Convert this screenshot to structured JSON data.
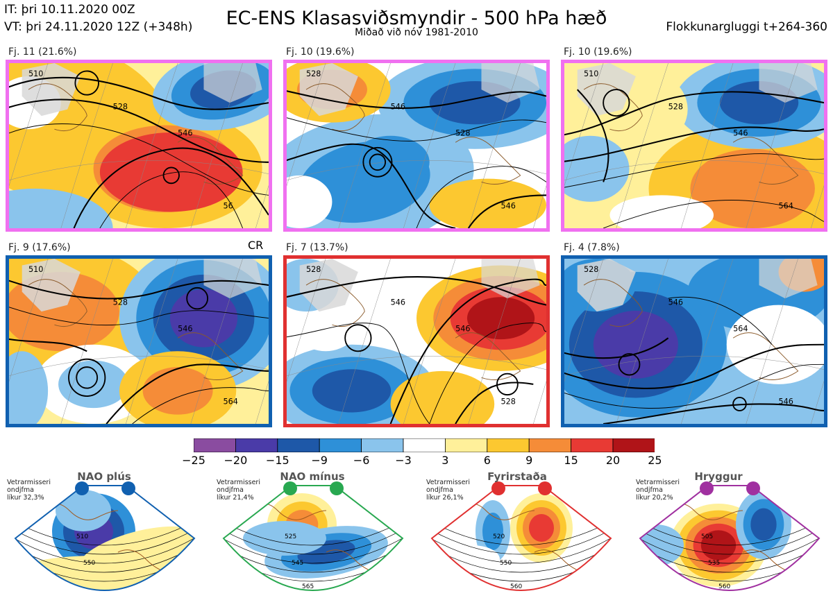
{
  "header": {
    "it": "IT: þri 10.11.2020 00Z",
    "vt": "VT: þri 24.11.2020 12Z  (+348h)",
    "title": "EC-ENS Klasasviðsmyndir - 500 hPa hæð",
    "subtitle": "Miðað við nóv 1981-2010",
    "window": "Flokkunargluggi t+264-360"
  },
  "panels": [
    {
      "label": "Fj. 11 (21.6%)",
      "regime_color": "#f070f0",
      "contours": [
        "510",
        "528",
        "546",
        "56"
      ]
    },
    {
      "label": "Fj. 10 (19.6%)",
      "regime_color": "#f070f0",
      "contours": [
        "528",
        "546",
        "528",
        "546"
      ]
    },
    {
      "label": "Fj. 10 (19.6%)",
      "regime_color": "#f070f0",
      "contours": [
        "510",
        "528",
        "546",
        "564"
      ]
    },
    {
      "label": "Fj. 9 (17.6%)",
      "regime_color": "#1060b0",
      "contours": [
        "510",
        "528",
        "546",
        "564"
      ]
    },
    {
      "label": "Fj. 7 (13.7%)",
      "regime_color": "#e03030",
      "contours": [
        "528",
        "546",
        "546",
        "528"
      ]
    },
    {
      "label": "Fj. 4 (7.8%)",
      "regime_color": "#1060b0",
      "contours": [
        "528",
        "546",
        "564",
        "546"
      ]
    }
  ],
  "cr_label": "CR",
  "colorbar": {
    "ticks": [
      "−25",
      "−20",
      "−15",
      "−9",
      "−6",
      "−3",
      "3",
      "6",
      "9",
      "15",
      "20",
      "25"
    ],
    "colors": [
      "#8a4ca0",
      "#4a3ba8",
      "#1e58a8",
      "#2e90d8",
      "#8ac4ec",
      "#ffffff",
      "#fff09a",
      "#fcc830",
      "#f58c38",
      "#e83a34",
      "#b01418"
    ]
  },
  "regimes": [
    {
      "name": "NAO plús",
      "note": [
        "Vetrarmisseri",
        "ondjfma",
        "líkur 32,3%"
      ],
      "color": "#1060b0",
      "contours": [
        "510",
        "550"
      ]
    },
    {
      "name": "NAO mínus",
      "note": [
        "Vetrarmisseri",
        "ondjfma",
        "líkur 21,4%"
      ],
      "color": "#28a850",
      "contours": [
        "525",
        "545",
        "565"
      ]
    },
    {
      "name": "Fyrirstaða",
      "note": [
        "Vetrarmisseri",
        "ondjfma",
        "líkur 26,1%"
      ],
      "color": "#e03030",
      "contours": [
        "520",
        "550",
        "560"
      ]
    },
    {
      "name": "Hryggur",
      "note": [
        "Vetrarmisseri",
        "ondjfma",
        "líkur 20,2%"
      ],
      "color": "#a030a0",
      "contours": [
        "505",
        "535",
        "560"
      ]
    }
  ]
}
